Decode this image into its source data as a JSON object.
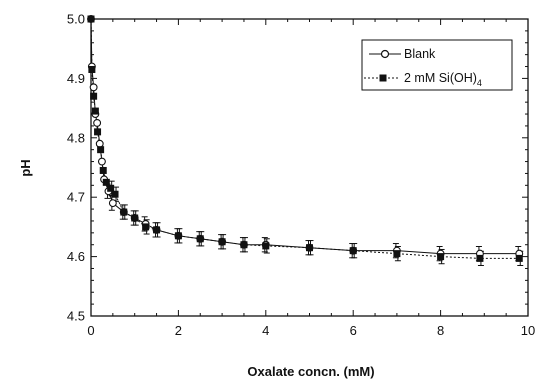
{
  "chart_data": {
    "type": "line",
    "xlabel": "Oxalate concn. (mM)",
    "ylabel": "pH",
    "xlim": [
      0,
      10
    ],
    "ylim": [
      4.5,
      5.0
    ],
    "xticks": [
      "0",
      "2",
      "4",
      "6",
      "8",
      "10"
    ],
    "yticks": [
      "4.5",
      "4.6",
      "4.7",
      "4.8",
      "4.9",
      "5.0"
    ],
    "grid": false,
    "legend_position": "top-right",
    "series": [
      {
        "name": "Blank",
        "marker": "open-circle",
        "line": "solid",
        "points": [
          [
            0.0,
            5.0
          ],
          [
            0.02,
            4.92
          ],
          [
            0.06,
            4.885
          ],
          [
            0.1,
            4.84
          ],
          [
            0.14,
            4.825
          ],
          [
            0.2,
            4.79
          ],
          [
            0.25,
            4.76
          ],
          [
            0.3,
            4.73
          ],
          [
            0.4,
            4.71
          ],
          [
            0.5,
            4.69
          ],
          [
            0.75,
            4.675
          ],
          [
            1.0,
            4.665
          ],
          [
            1.25,
            4.655
          ],
          [
            1.5,
            4.645
          ],
          [
            2.0,
            4.635
          ],
          [
            2.5,
            4.63
          ],
          [
            3.0,
            4.625
          ],
          [
            3.5,
            4.62
          ],
          [
            4.0,
            4.62
          ],
          [
            5.0,
            4.615
          ],
          [
            6.0,
            4.61
          ],
          [
            7.0,
            4.61
          ],
          [
            8.0,
            4.605
          ],
          [
            8.9,
            4.605
          ],
          [
            9.8,
            4.605
          ]
        ]
      },
      {
        "name": "2 mM Si(OH)",
        "name_subscript": "4",
        "marker": "filled-square",
        "line": "dashed",
        "points": [
          [
            0.0,
            5.0
          ],
          [
            0.02,
            4.915
          ],
          [
            0.06,
            4.87
          ],
          [
            0.1,
            4.845
          ],
          [
            0.15,
            4.81
          ],
          [
            0.22,
            4.78
          ],
          [
            0.28,
            4.745
          ],
          [
            0.35,
            4.725
          ],
          [
            0.45,
            4.715
          ],
          [
            0.55,
            4.705
          ],
          [
            0.75,
            4.675
          ],
          [
            1.0,
            4.665
          ],
          [
            1.25,
            4.65
          ],
          [
            1.5,
            4.645
          ],
          [
            2.0,
            4.635
          ],
          [
            2.5,
            4.63
          ],
          [
            3.0,
            4.625
          ],
          [
            3.5,
            4.62
          ],
          [
            4.0,
            4.618
          ],
          [
            5.0,
            4.615
          ],
          [
            6.0,
            4.61
          ],
          [
            7.0,
            4.605
          ],
          [
            8.0,
            4.6
          ],
          [
            8.9,
            4.597
          ],
          [
            9.8,
            4.597
          ]
        ]
      }
    ],
    "error_bar": 0.012
  }
}
